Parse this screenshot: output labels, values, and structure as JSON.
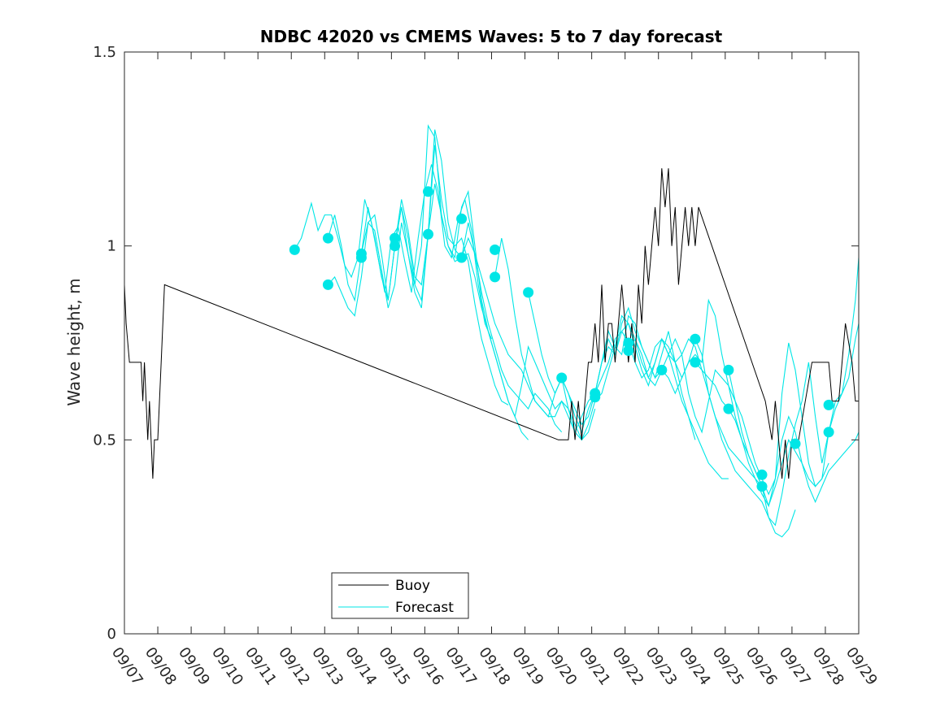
{
  "chart_data": {
    "type": "line",
    "title": "NDBC 42020 vs CMEMS Waves: 5 to 7 day forecast",
    "xlabel": "",
    "ylabel": "Wave height, m",
    "xlim": [
      0,
      22
    ],
    "ylim": [
      0,
      1.5
    ],
    "yticks": [
      0,
      0.5,
      1,
      1.5
    ],
    "ytick_labels": [
      "0",
      "0.5",
      "1",
      "1.5"
    ],
    "xtick_labels": [
      "09/07",
      "09/08",
      "09/09",
      "09/10",
      "09/11",
      "09/12",
      "09/13",
      "09/14",
      "09/15",
      "09/16",
      "09/17",
      "09/18",
      "09/19",
      "09/20",
      "09/21",
      "09/22",
      "09/23",
      "09/24",
      "09/25",
      "09/26",
      "09/27",
      "09/28",
      "09/29"
    ],
    "legend": {
      "position": "bottom-left",
      "entries": [
        "Buoy",
        "Forecast"
      ]
    },
    "colors": {
      "buoy": "#000000",
      "forecast": "#00e6e6"
    },
    "buoy": {
      "x": [
        0,
        0.05,
        0.15,
        0.2,
        0.5,
        0.55,
        0.6,
        0.65,
        0.7,
        0.75,
        0.8,
        0.85,
        0.9,
        0.95,
        1.0,
        1.05,
        1.1,
        1.2,
        13.0,
        13.3,
        13.4,
        13.5,
        13.6,
        13.7,
        13.8,
        13.9,
        14.0,
        14.1,
        14.2,
        14.3,
        14.4,
        14.5,
        14.6,
        14.7,
        14.8,
        14.9,
        15.0,
        15.1,
        15.2,
        15.3,
        15.4,
        15.5,
        15.6,
        15.7,
        15.8,
        15.9,
        16.0,
        16.1,
        16.2,
        16.3,
        16.4,
        16.5,
        16.6,
        16.7,
        16.8,
        16.9,
        17.0,
        17.1,
        17.2,
        19.2,
        19.4,
        19.5,
        19.6,
        19.7,
        19.8,
        19.9,
        20.0,
        20.2,
        20.4,
        20.6,
        21.1,
        21.2,
        21.4,
        21.6,
        21.8,
        21.9,
        22.0
      ],
      "y": [
        0.9,
        0.8,
        0.7,
        0.7,
        0.7,
        0.6,
        0.7,
        0.6,
        0.5,
        0.6,
        0.5,
        0.4,
        0.5,
        0.5,
        0.5,
        0.6,
        0.7,
        0.9,
        0.5,
        0.5,
        0.6,
        0.5,
        0.6,
        0.5,
        0.6,
        0.7,
        0.7,
        0.8,
        0.7,
        0.9,
        0.7,
        0.8,
        0.8,
        0.7,
        0.8,
        0.9,
        0.8,
        0.7,
        0.8,
        0.7,
        0.9,
        0.8,
        1.0,
        0.9,
        1.0,
        1.1,
        1.0,
        1.2,
        1.1,
        1.2,
        1.0,
        1.1,
        0.9,
        1.0,
        1.1,
        1.0,
        1.1,
        1.0,
        1.1,
        0.6,
        0.5,
        0.6,
        0.5,
        0.4,
        0.5,
        0.4,
        0.5,
        0.5,
        0.6,
        0.7,
        0.7,
        0.6,
        0.6,
        0.8,
        0.7,
        0.6,
        0.6
      ]
    },
    "forecast_series": [
      {
        "x": [
          5.1,
          5.3,
          5.5,
          5.6,
          5.8,
          6.0,
          6.2,
          6.4,
          6.6,
          6.8,
          7.0,
          7.2,
          7.4,
          7.6,
          7.8,
          8.0,
          8.2,
          8.4,
          8.6,
          8.8,
          9.0,
          9.2,
          9.4,
          9.6,
          9.8,
          10.0,
          10.2,
          10.4,
          10.6,
          10.8,
          11.0
        ],
        "y": [
          0.99,
          1.02,
          1.08,
          1.11,
          1.04,
          1.08,
          1.08,
          1.02,
          0.95,
          0.92,
          0.97,
          1.12,
          1.06,
          0.97,
          0.88,
          1.02,
          1.05,
          0.96,
          0.88,
          1.02,
          1.14,
          1.21,
          1.14,
          1.0,
          0.97,
          1.07,
          1.12,
          1.04,
          0.9,
          0.8,
          0.76
        ]
      },
      {
        "x": [
          6.1,
          6.3,
          6.5,
          6.7,
          6.9,
          7.1,
          7.3,
          7.5,
          7.7,
          7.9,
          8.1,
          8.3,
          8.5,
          8.7,
          8.9,
          9.1,
          9.3,
          9.5,
          9.7,
          9.9,
          10.1,
          10.3,
          10.5,
          10.7,
          10.9,
          11.1,
          11.3,
          11.5,
          11.7,
          11.9,
          12.1
        ],
        "y": [
          1.02,
          1.08,
          1.0,
          0.9,
          0.86,
          0.98,
          1.1,
          1.02,
          0.92,
          0.86,
          1.0,
          1.1,
          0.98,
          0.9,
          1.0,
          1.31,
          1.28,
          1.08,
          1.0,
          0.97,
          1.1,
          1.14,
          1.0,
          0.86,
          0.78,
          0.72,
          0.66,
          0.6,
          0.56,
          0.52,
          0.5
        ]
      },
      {
        "x": [
          6.1,
          6.3,
          6.5,
          6.7,
          6.9,
          7.1,
          7.3,
          7.5,
          7.7,
          7.9,
          8.1,
          8.3,
          8.5,
          8.7,
          8.9,
          9.1,
          9.3,
          9.5,
          9.7,
          9.9,
          10.1,
          10.3,
          10.5,
          10.7,
          10.9,
          11.1,
          11.3,
          11.5
        ],
        "y": [
          0.9,
          0.92,
          0.88,
          0.84,
          0.82,
          0.92,
          1.06,
          1.04,
          0.94,
          0.84,
          0.9,
          1.06,
          0.98,
          0.88,
          0.84,
          1.03,
          1.26,
          1.12,
          1.02,
          1.0,
          1.02,
          0.96,
          0.85,
          0.76,
          0.7,
          0.64,
          0.6,
          0.59
        ]
      },
      {
        "x": [
          7.1,
          7.3,
          7.5,
          7.7,
          7.9,
          8.1,
          8.3,
          8.5,
          8.7,
          8.9,
          9.1,
          9.3,
          9.5,
          9.7,
          9.9,
          10.1,
          10.3,
          10.5,
          10.7,
          10.9,
          11.1,
          11.3,
          11.5,
          11.7,
          11.9,
          12.1,
          12.3,
          12.5,
          12.7,
          12.9,
          13.1
        ],
        "y": [
          0.98,
          1.06,
          1.08,
          0.98,
          0.86,
          1.0,
          1.12,
          1.04,
          0.92,
          0.9,
          1.03,
          1.16,
          1.08,
          1.0,
          0.96,
          0.97,
          1.06,
          0.98,
          0.88,
          0.8,
          0.74,
          0.68,
          0.64,
          0.62,
          0.6,
          0.58,
          0.62,
          0.6,
          0.58,
          0.54,
          0.52
        ]
      },
      {
        "x": [
          8.1,
          8.3,
          8.5,
          8.7,
          8.9,
          9.1,
          9.3,
          9.5,
          9.7,
          9.9,
          10.1,
          10.3,
          10.5,
          10.7,
          10.9,
          11.1,
          11.3,
          11.5,
          11.7,
          11.9,
          12.1,
          12.3,
          12.5,
          12.7,
          12.9,
          13.1,
          13.3,
          13.5,
          13.7,
          13.9,
          14.1
        ],
        "y": [
          1.0,
          1.1,
          1.02,
          0.9,
          0.86,
          1.03,
          1.3,
          1.22,
          1.06,
          0.99,
          0.97,
          1.02,
          0.98,
          0.92,
          0.86,
          0.8,
          0.76,
          0.72,
          0.7,
          0.68,
          0.64,
          0.6,
          0.58,
          0.56,
          0.56,
          0.6,
          0.58,
          0.54,
          0.5,
          0.52,
          0.58
        ]
      },
      {
        "x": [
          10.1,
          10.3,
          10.5,
          10.7,
          10.9,
          11.1,
          11.3,
          11.5,
          11.7,
          11.9,
          12.1,
          12.3,
          12.5,
          12.7,
          12.9,
          13.1,
          13.3,
          13.5,
          13.7,
          13.9,
          14.1,
          14.3,
          14.5,
          14.7,
          14.9,
          15.1,
          15.3,
          15.5,
          15.7,
          15.9,
          16.1
        ],
        "y": [
          0.97,
          0.98,
          0.92,
          0.84,
          0.78,
          0.72,
          0.66,
          0.6,
          0.56,
          0.64,
          0.74,
          0.7,
          0.66,
          0.62,
          0.58,
          0.6,
          0.56,
          0.52,
          0.56,
          0.6,
          0.62,
          0.7,
          0.74,
          0.72,
          0.8,
          0.84,
          0.78,
          0.74,
          0.7,
          0.66,
          0.68
        ]
      },
      {
        "x": [
          11.1,
          11.3,
          11.5,
          11.7,
          11.9,
          12.1,
          12.3,
          12.5,
          12.7,
          12.9,
          13.1,
          13.3,
          13.5,
          13.7,
          13.9,
          14.1,
          14.3,
          14.5,
          14.7,
          14.9,
          15.1,
          15.3,
          15.5,
          15.7,
          15.9,
          16.1,
          16.3,
          16.5,
          16.7,
          16.9,
          17.1
        ],
        "y": [
          0.92,
          1.02,
          0.94,
          0.82,
          0.72,
          0.66,
          0.6,
          0.58,
          0.56,
          0.62,
          0.66,
          0.62,
          0.58,
          0.54,
          0.56,
          0.62,
          0.66,
          0.7,
          0.76,
          0.78,
          0.8,
          0.76,
          0.7,
          0.66,
          0.7,
          0.76,
          0.72,
          0.66,
          0.6,
          0.56,
          0.5
        ]
      },
      {
        "x": [
          12.1,
          12.3,
          12.5,
          12.7,
          12.9,
          13.1,
          13.3,
          13.5,
          13.7,
          13.9,
          14.1,
          14.3,
          14.5,
          14.7,
          14.9,
          15.1,
          15.3,
          15.5,
          15.7,
          15.9,
          16.1,
          16.3,
          16.5,
          16.7,
          16.9,
          17.1,
          17.3,
          17.5,
          17.7,
          17.9,
          18.1
        ],
        "y": [
          0.88,
          0.8,
          0.72,
          0.66,
          0.62,
          0.66,
          0.62,
          0.56,
          0.52,
          0.58,
          0.62,
          0.7,
          0.78,
          0.74,
          0.72,
          0.82,
          0.8,
          0.74,
          0.7,
          0.66,
          0.72,
          0.78,
          0.7,
          0.62,
          0.56,
          0.52,
          0.48,
          0.44,
          0.42,
          0.4,
          0.4
        ]
      },
      {
        "x": [
          13.1,
          13.3,
          13.5,
          13.7,
          13.9,
          14.1,
          14.3,
          14.5,
          14.7,
          14.9,
          15.1,
          15.3,
          15.5,
          15.7,
          15.9,
          16.1,
          16.3,
          16.5,
          16.7,
          16.9,
          17.1,
          17.3,
          17.5,
          17.7,
          17.9,
          18.1,
          18.3,
          18.5,
          18.7,
          18.9,
          19.1
        ],
        "y": [
          0.66,
          0.58,
          0.52,
          0.5,
          0.54,
          0.6,
          0.62,
          0.68,
          0.74,
          0.82,
          0.8,
          0.74,
          0.68,
          0.64,
          0.7,
          0.76,
          0.72,
          0.7,
          0.72,
          0.76,
          0.74,
          0.68,
          0.62,
          0.56,
          0.52,
          0.48,
          0.46,
          0.44,
          0.42,
          0.4,
          0.38
        ]
      },
      {
        "x": [
          14.1,
          14.3,
          14.5,
          14.7,
          14.9,
          15.1,
          15.3,
          15.5,
          15.7,
          15.9,
          16.1,
          16.3,
          16.5,
          16.7,
          16.9,
          17.1,
          17.3,
          17.5,
          17.7,
          17.9,
          18.1,
          18.3,
          18.5,
          18.7,
          18.9,
          19.1,
          19.3,
          19.5,
          19.7,
          19.9,
          20.1
        ],
        "y": [
          0.62,
          0.7,
          0.76,
          0.72,
          0.78,
          0.75,
          0.7,
          0.66,
          0.68,
          0.74,
          0.76,
          0.74,
          0.7,
          0.66,
          0.7,
          0.76,
          0.72,
          0.62,
          0.56,
          0.5,
          0.46,
          0.42,
          0.4,
          0.38,
          0.36,
          0.34,
          0.3,
          0.26,
          0.25,
          0.27,
          0.32
        ]
      },
      {
        "x": [
          15.1,
          15.3,
          15.5,
          15.7,
          15.9,
          16.1,
          16.3,
          16.5,
          16.7,
          16.9,
          17.1,
          17.3,
          17.5,
          17.7,
          17.9,
          18.1,
          18.3,
          18.5,
          18.7,
          18.9,
          19.1,
          19.3,
          19.5,
          19.7,
          19.9,
          20.1,
          20.3,
          20.5,
          20.7,
          20.9,
          21.1
        ],
        "y": [
          0.73,
          0.76,
          0.72,
          0.66,
          0.64,
          0.68,
          0.66,
          0.62,
          0.66,
          0.7,
          0.72,
          0.7,
          0.86,
          0.82,
          0.72,
          0.64,
          0.56,
          0.5,
          0.44,
          0.4,
          0.36,
          0.33,
          0.38,
          0.44,
          0.5,
          0.47,
          0.44,
          0.4,
          0.38,
          0.4,
          0.44
        ]
      },
      {
        "x": [
          16.1,
          16.3,
          16.5,
          16.7,
          16.9,
          17.1,
          17.3,
          17.5,
          17.7,
          17.9,
          18.1,
          18.3,
          18.5,
          18.7,
          18.9,
          19.1,
          19.3,
          19.5,
          19.7,
          19.9,
          20.1,
          20.3,
          20.5,
          20.7,
          20.9,
          21.1,
          21.3,
          21.5,
          21.7,
          21.9,
          22.0
        ],
        "y": [
          0.68,
          0.72,
          0.76,
          0.72,
          0.62,
          0.56,
          0.52,
          0.6,
          0.68,
          0.66,
          0.64,
          0.6,
          0.56,
          0.5,
          0.44,
          0.4,
          0.36,
          0.4,
          0.5,
          0.56,
          0.52,
          0.44,
          0.38,
          0.34,
          0.38,
          0.42,
          0.44,
          0.46,
          0.48,
          0.5,
          0.52
        ]
      },
      {
        "x": [
          17.1,
          17.3,
          17.5,
          17.7,
          17.9,
          18.1,
          18.3,
          18.5,
          18.7,
          18.9,
          19.1,
          19.3,
          19.5,
          19.7,
          19.9,
          20.1,
          20.3,
          20.5,
          20.7,
          20.9,
          21.1,
          21.3,
          21.5,
          21.7,
          21.9,
          22.0
        ],
        "y": [
          0.7,
          0.68,
          0.66,
          0.64,
          0.6,
          0.58,
          0.55,
          0.5,
          0.46,
          0.42,
          0.38,
          0.33,
          0.4,
          0.62,
          0.75,
          0.68,
          0.56,
          0.44,
          0.38,
          0.4,
          0.52,
          0.6,
          0.62,
          0.72,
          0.86,
          0.97
        ]
      },
      {
        "x": [
          18.1,
          18.3,
          18.5,
          18.7,
          18.9,
          19.1,
          19.3,
          19.5,
          19.7,
          19.9,
          20.1,
          20.3,
          20.5,
          20.7,
          20.9,
          21.1,
          21.3,
          21.5,
          21.7,
          21.9,
          22.0
        ],
        "y": [
          0.68,
          0.6,
          0.52,
          0.46,
          0.42,
          0.38,
          0.3,
          0.28,
          0.36,
          0.46,
          0.54,
          0.6,
          0.7,
          0.56,
          0.44,
          0.52,
          0.58,
          0.62,
          0.66,
          0.76,
          0.8
        ]
      }
    ],
    "forecast_points": {
      "x": [
        5.1,
        6.1,
        6.1,
        7.1,
        7.1,
        8.1,
        8.1,
        9.1,
        9.1,
        10.1,
        10.1,
        11.1,
        11.1,
        12.1,
        13.1,
        14.1,
        14.1,
        15.1,
        15.1,
        16.1,
        17.1,
        17.1,
        18.1,
        18.1,
        19.1,
        19.1,
        20.1,
        21.1,
        21.1
      ],
      "y": [
        0.99,
        1.02,
        0.9,
        0.98,
        0.97,
        1.02,
        1.0,
        1.14,
        1.03,
        1.07,
        0.97,
        0.99,
        0.92,
        0.88,
        0.66,
        0.62,
        0.61,
        0.75,
        0.73,
        0.68,
        0.76,
        0.7,
        0.68,
        0.58,
        0.41,
        0.38,
        0.49,
        0.59,
        0.52
      ]
    }
  }
}
